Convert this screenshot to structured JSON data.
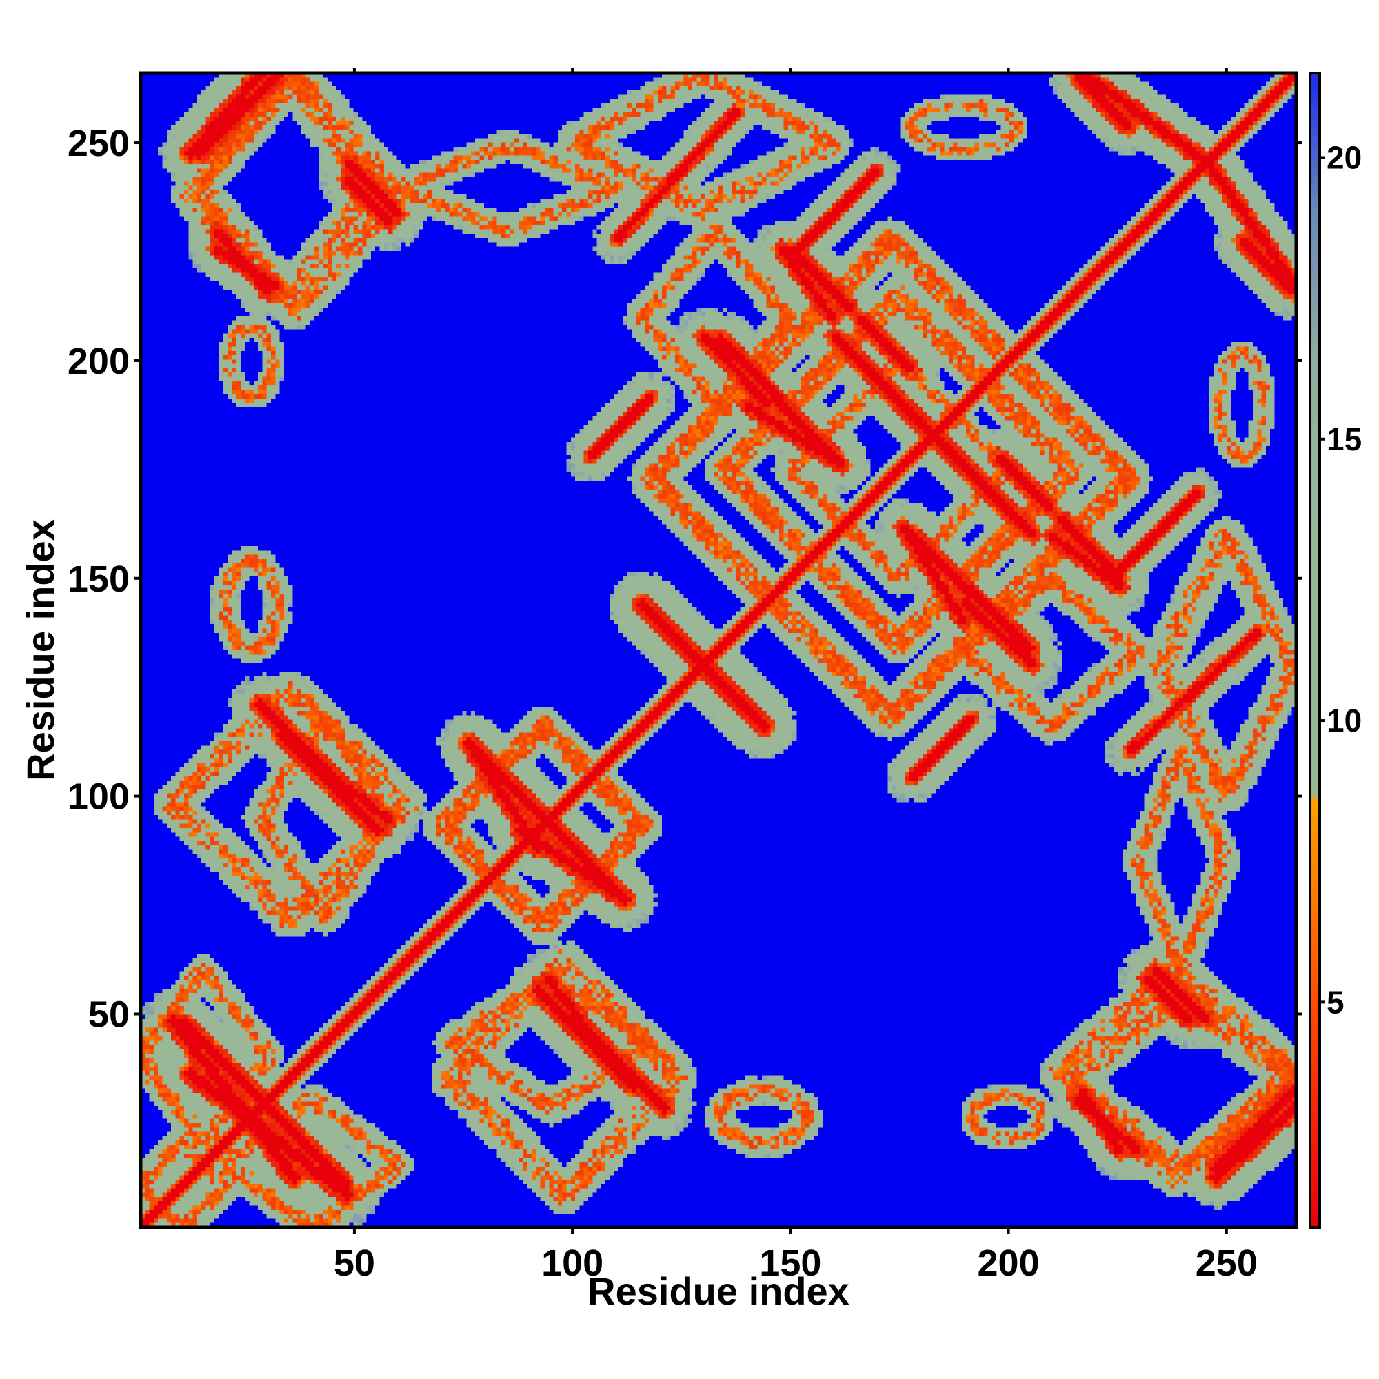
{
  "chart_data": {
    "type": "heatmap",
    "title": "",
    "xlabel": "Residue index",
    "ylabel": "Residue index",
    "n_residues": 266,
    "xlim": [
      1,
      266
    ],
    "ylim": [
      1,
      266
    ],
    "x_ticks": [
      50,
      100,
      150,
      200,
      250
    ],
    "y_ticks": [
      50,
      100,
      150,
      200,
      250
    ],
    "colorbar": {
      "ticks": [
        5,
        10,
        15,
        20
      ],
      "range": [
        1,
        21.5
      ],
      "colors": {
        "contact": "#e8000b",
        "near": "#ff8a00",
        "mid": "#9ab898",
        "far": "#0000f5"
      }
    },
    "background_value": 21,
    "diagonal": {
      "from": 1,
      "to": 266,
      "value": 1
    },
    "grid": false,
    "legend": "colorbar-right",
    "features": [
      {
        "kind": "anti",
        "a": [
          8,
          48
        ],
        "b": [
          36,
          12
        ],
        "w": 2.6
      },
      {
        "kind": "anti",
        "a": [
          30,
          28
        ],
        "b": [
          48,
          10
        ],
        "w": 2.2
      },
      {
        "kind": "anti",
        "a": [
          12,
          248
        ],
        "b": [
          28,
          266
        ],
        "w": 2.4
      },
      {
        "kind": "anti",
        "a": [
          48,
          246
        ],
        "b": [
          60,
          234
        ],
        "w": 2.2
      },
      {
        "kind": "anti",
        "a": [
          18,
          230
        ],
        "b": [
          30,
          216
        ],
        "w": 2.2
      },
      {
        "kind": "anti",
        "a": [
          28,
          121
        ],
        "b": [
          48,
          101
        ],
        "w": 2.4
      },
      {
        "kind": "anti",
        "a": [
          48,
          102
        ],
        "b": [
          58,
          94
        ],
        "w": 2.2
      },
      {
        "kind": "anti",
        "a": [
          76,
          112
        ],
        "b": [
          96,
          92
        ],
        "w": 2.4
      },
      {
        "kind": "anti",
        "a": [
          88,
          92
        ],
        "b": [
          112,
          76
        ],
        "w": 2.4
      },
      {
        "kind": "anti",
        "a": [
          92,
          55
        ],
        "b": [
          114,
          33
        ],
        "w": 2.4
      },
      {
        "kind": "anti",
        "a": [
          116,
          144
        ],
        "b": [
          144,
          116
        ],
        "w": 2.6
      },
      {
        "kind": "anti",
        "a": [
          130,
          206
        ],
        "b": [
          145,
          190
        ],
        "w": 2.2
      },
      {
        "kind": "anti",
        "a": [
          140,
          190
        ],
        "b": [
          162,
          176
        ],
        "w": 2.2
      },
      {
        "kind": "anti",
        "a": [
          150,
          226
        ],
        "b": [
          164,
          212
        ],
        "w": 2.2
      },
      {
        "kind": "anti",
        "a": [
          160,
          206
        ],
        "b": [
          174,
          192
        ],
        "w": 2.2
      },
      {
        "kind": "anti",
        "a": [
          176,
          190
        ],
        "b": [
          192,
          174
        ],
        "w": 2.2
      },
      {
        "kind": "anti",
        "a": [
          178,
          160
        ],
        "b": [
          205,
          134
        ],
        "w": 2.4
      },
      {
        "kind": "anti",
        "a": [
          198,
          178
        ],
        "b": [
          210,
          166
        ],
        "w": 2.2
      },
      {
        "kind": "anti",
        "a": [
          210,
          160
        ],
        "b": [
          226,
          148
        ],
        "w": 2.2
      },
      {
        "kind": "anti",
        "a": [
          216,
          266
        ],
        "b": [
          228,
          254
        ],
        "w": 2.2
      },
      {
        "kind": "anti",
        "a": [
          232,
          58
        ],
        "b": [
          242,
          48
        ],
        "w": 2.2
      },
      {
        "kind": "anti",
        "a": [
          217,
          32
        ],
        "b": [
          226,
          18
        ],
        "w": 2.2
      },
      {
        "kind": "anti",
        "a": [
          246,
          246
        ],
        "b": [
          266,
          218
        ],
        "w": 2.2
      },
      {
        "kind": "par",
        "a": [
          248,
          14
        ],
        "b": [
          266,
          32
        ],
        "w": 2.4
      },
      {
        "kind": "par",
        "a": [
          104,
          178
        ],
        "b": [
          118,
          192
        ],
        "w": 2.0
      },
      {
        "kind": "par",
        "a": [
          228,
          110
        ],
        "b": [
          258,
          138
        ],
        "w": 1.8
      },
      {
        "kind": "par",
        "a": [
          150,
          224
        ],
        "b": [
          170,
          244
        ],
        "w": 1.8
      }
    ],
    "halos": [
      {
        "kind": "box",
        "x": [
          14,
          54
        ],
        "y": [
          214,
          266
        ],
        "w": 4.5
      },
      {
        "kind": "box",
        "x": [
          212,
          266
        ],
        "y": [
          12,
          60
        ],
        "w": 4.5
      },
      {
        "kind": "box",
        "x": [
          8,
          62
        ],
        "y": [
          72,
          124
        ],
        "w": 4.5
      },
      {
        "kind": "box",
        "x": [
          70,
          116
        ],
        "y": [
          70,
          116
        ],
        "w": 4.5
      },
      {
        "kind": "box",
        "x": [
          118,
          228
        ],
        "y": [
          118,
          228
        ],
        "w": 5.0
      },
      {
        "kind": "box",
        "x": [
          135,
          215
        ],
        "y": [
          135,
          215
        ],
        "w": 4.5
      },
      {
        "kind": "box",
        "x": [
          150,
          200
        ],
        "y": [
          150,
          200
        ],
        "w": 4.0
      },
      {
        "kind": "box",
        "x": [
          116,
          150
        ],
        "y": [
          190,
          230
        ],
        "w": 4.0
      },
      {
        "kind": "box",
        "x": [
          190,
          230
        ],
        "y": [
          116,
          150
        ],
        "w": 4.0
      },
      {
        "kind": "box",
        "x": [
          72,
          118
        ],
        "y": [
          28,
          58
        ],
        "w": 4.0
      },
      {
        "kind": "box",
        "x": [
          28,
          58
        ],
        "y": [
          72,
          118
        ],
        "w": 4.0
      },
      {
        "kind": "box",
        "x": [
          100,
          160
        ],
        "y": [
          234,
          266
        ],
        "w": 4.0
      },
      {
        "kind": "box",
        "x": [
          236,
          266
        ],
        "y": [
          100,
          160
        ],
        "w": 4.0
      },
      {
        "kind": "box",
        "x": [
          60,
          110
        ],
        "y": [
          230,
          250
        ],
        "w": 3.5
      },
      {
        "kind": "box",
        "x": [
          230,
          250
        ],
        "y": [
          60,
          110
        ],
        "w": 3.5
      },
      {
        "kind": "box",
        "x": [
          0,
          20
        ],
        "y": [
          0,
          20
        ],
        "w": 4.0
      },
      {
        "kind": "box",
        "x": [
          20,
          60
        ],
        "y": [
          0,
          30
        ],
        "w": 3.5
      },
      {
        "kind": "box",
        "x": [
          0,
          30
        ],
        "y": [
          20,
          60
        ],
        "w": 3.5
      },
      {
        "kind": "ring",
        "x": 26,
        "y": 144,
        "rx": 6,
        "ry": 10,
        "w": 3.0
      },
      {
        "kind": "ring",
        "x": 144,
        "y": 26,
        "rx": 10,
        "ry": 6,
        "w": 3.0
      },
      {
        "kind": "ring",
        "x": 26,
        "y": 200,
        "rx": 5,
        "ry": 8,
        "w": 2.4
      },
      {
        "kind": "ring",
        "x": 200,
        "y": 26,
        "rx": 8,
        "ry": 5,
        "w": 2.4
      },
      {
        "kind": "ring",
        "x": 254,
        "y": 190,
        "rx": 5,
        "ry": 12,
        "w": 2.6
      },
      {
        "kind": "ring",
        "x": 190,
        "y": 254,
        "rx": 12,
        "ry": 5,
        "w": 2.6
      }
    ]
  }
}
